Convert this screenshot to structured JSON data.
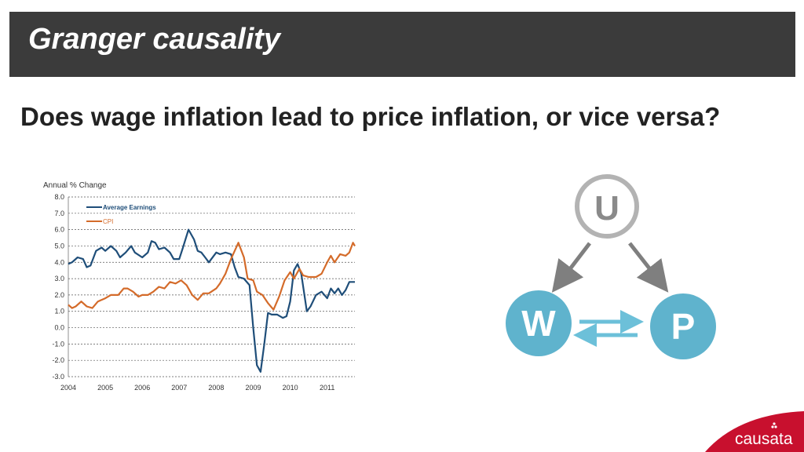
{
  "slide": {
    "title": "Granger causality",
    "question": "Does wage inflation lead to price inflation, or vice versa?"
  },
  "chart_data": {
    "type": "line",
    "ylabel": "Annual % Change",
    "ylim": [
      -3.0,
      8.0
    ],
    "xlim": [
      2004,
      2011.75
    ],
    "y_ticks": [
      "8.0",
      "7.0",
      "6.0",
      "5.0",
      "4.0",
      "3.0",
      "2.0",
      "1.0",
      "0.0",
      "-1.0",
      "-2.0",
      "-3.0"
    ],
    "x_ticks": [
      "2004",
      "2005",
      "2006",
      "2007",
      "2008",
      "2009",
      "2010",
      "2011"
    ],
    "grid": "horizontal-dashed",
    "legend_position": "top-left",
    "series": [
      {
        "name": "Average Earnings",
        "color": "#1f4e79",
        "points": [
          [
            2004.0,
            3.9
          ],
          [
            2004.1,
            4.0
          ],
          [
            2004.25,
            4.3
          ],
          [
            2004.4,
            4.2
          ],
          [
            2004.5,
            3.7
          ],
          [
            2004.6,
            3.8
          ],
          [
            2004.75,
            4.7
          ],
          [
            2004.9,
            4.9
          ],
          [
            2005.0,
            4.7
          ],
          [
            2005.15,
            5.0
          ],
          [
            2005.3,
            4.7
          ],
          [
            2005.4,
            4.3
          ],
          [
            2005.55,
            4.6
          ],
          [
            2005.7,
            5.0
          ],
          [
            2005.8,
            4.6
          ],
          [
            2006.0,
            4.3
          ],
          [
            2006.15,
            4.6
          ],
          [
            2006.25,
            5.3
          ],
          [
            2006.35,
            5.2
          ],
          [
            2006.45,
            4.8
          ],
          [
            2006.6,
            4.9
          ],
          [
            2006.75,
            4.6
          ],
          [
            2006.85,
            4.2
          ],
          [
            2007.0,
            4.2
          ],
          [
            2007.1,
            4.9
          ],
          [
            2007.25,
            6.0
          ],
          [
            2007.4,
            5.4
          ],
          [
            2007.5,
            4.7
          ],
          [
            2007.6,
            4.6
          ],
          [
            2007.7,
            4.3
          ],
          [
            2007.8,
            4.0
          ],
          [
            2008.0,
            4.6
          ],
          [
            2008.1,
            4.5
          ],
          [
            2008.25,
            4.6
          ],
          [
            2008.4,
            4.5
          ],
          [
            2008.5,
            3.7
          ],
          [
            2008.6,
            3.1
          ],
          [
            2008.75,
            3.0
          ],
          [
            2008.9,
            2.6
          ],
          [
            2009.0,
            0.0
          ],
          [
            2009.1,
            -2.3
          ],
          [
            2009.2,
            -2.7
          ],
          [
            2009.3,
            -1.0
          ],
          [
            2009.4,
            0.9
          ],
          [
            2009.5,
            0.8
          ],
          [
            2009.65,
            0.8
          ],
          [
            2009.8,
            0.6
          ],
          [
            2009.9,
            0.7
          ],
          [
            2010.0,
            1.6
          ],
          [
            2010.1,
            3.5
          ],
          [
            2010.2,
            3.9
          ],
          [
            2010.3,
            3.3
          ],
          [
            2010.45,
            1.0
          ],
          [
            2010.55,
            1.3
          ],
          [
            2010.7,
            2.0
          ],
          [
            2010.85,
            2.2
          ],
          [
            2011.0,
            1.8
          ],
          [
            2011.1,
            2.4
          ],
          [
            2011.2,
            2.1
          ],
          [
            2011.3,
            2.4
          ],
          [
            2011.4,
            2.0
          ],
          [
            2011.5,
            2.3
          ],
          [
            2011.6,
            2.8
          ],
          [
            2011.75,
            2.8
          ]
        ]
      },
      {
        "name": "CPI",
        "color": "#d46b2a",
        "points": [
          [
            2004.0,
            1.4
          ],
          [
            2004.1,
            1.2
          ],
          [
            2004.2,
            1.3
          ],
          [
            2004.35,
            1.6
          ],
          [
            2004.5,
            1.3
          ],
          [
            2004.65,
            1.2
          ],
          [
            2004.8,
            1.6
          ],
          [
            2005.0,
            1.8
          ],
          [
            2005.15,
            2.0
          ],
          [
            2005.35,
            2.0
          ],
          [
            2005.5,
            2.4
          ],
          [
            2005.6,
            2.4
          ],
          [
            2005.75,
            2.2
          ],
          [
            2005.9,
            1.9
          ],
          [
            2006.0,
            2.0
          ],
          [
            2006.15,
            2.0
          ],
          [
            2006.3,
            2.2
          ],
          [
            2006.45,
            2.5
          ],
          [
            2006.6,
            2.4
          ],
          [
            2006.75,
            2.8
          ],
          [
            2006.9,
            2.7
          ],
          [
            2007.05,
            2.9
          ],
          [
            2007.2,
            2.6
          ],
          [
            2007.35,
            2.0
          ],
          [
            2007.5,
            1.7
          ],
          [
            2007.65,
            2.1
          ],
          [
            2007.8,
            2.1
          ],
          [
            2008.0,
            2.4
          ],
          [
            2008.1,
            2.7
          ],
          [
            2008.25,
            3.3
          ],
          [
            2008.4,
            4.2
          ],
          [
            2008.6,
            5.2
          ],
          [
            2008.75,
            4.3
          ],
          [
            2008.85,
            3.0
          ],
          [
            2009.0,
            2.9
          ],
          [
            2009.1,
            2.2
          ],
          [
            2009.25,
            2.0
          ],
          [
            2009.4,
            1.5
          ],
          [
            2009.55,
            1.1
          ],
          [
            2009.7,
            1.9
          ],
          [
            2009.85,
            2.9
          ],
          [
            2010.0,
            3.4
          ],
          [
            2010.1,
            3.0
          ],
          [
            2010.25,
            3.6
          ],
          [
            2010.35,
            3.2
          ],
          [
            2010.5,
            3.1
          ],
          [
            2010.7,
            3.1
          ],
          [
            2010.85,
            3.3
          ],
          [
            2011.0,
            4.0
          ],
          [
            2011.1,
            4.4
          ],
          [
            2011.2,
            4.0
          ],
          [
            2011.35,
            4.5
          ],
          [
            2011.5,
            4.4
          ],
          [
            2011.6,
            4.6
          ],
          [
            2011.7,
            5.2
          ],
          [
            2011.75,
            5.0
          ]
        ]
      }
    ]
  },
  "diagram": {
    "nodes": [
      {
        "id": "U",
        "label": "U"
      },
      {
        "id": "W",
        "label": "W"
      },
      {
        "id": "P",
        "label": "P"
      }
    ],
    "colors": {
      "latent": "#b3b3b3",
      "observed": "#5fb3cd",
      "arrow": "#7f7f7f",
      "bidirectional": "#6cc0d9"
    }
  },
  "logo": {
    "text": "causata",
    "color": "#c8102e"
  }
}
